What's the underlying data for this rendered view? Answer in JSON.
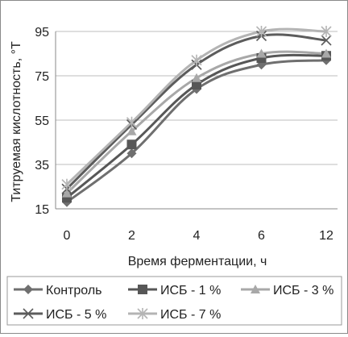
{
  "chart_data": {
    "type": "line",
    "title": "",
    "xlabel": "Время ферментации, ч",
    "ylabel": "Титруемая кислотность, °Т",
    "categories": [
      "0",
      "2",
      "4",
      "6",
      "12"
    ],
    "ylim": [
      15,
      95
    ],
    "yticks": [
      15,
      35,
      55,
      75,
      95
    ],
    "grid": "horizontal",
    "legend": "bottom",
    "series": [
      {
        "name": "Контроль",
        "values": [
          18,
          40,
          69,
          80,
          82
        ],
        "marker": "diamond",
        "color": "#6f6f6f"
      },
      {
        "name": "ИСБ - 1 %",
        "values": [
          20,
          44,
          71,
          83,
          84
        ],
        "marker": "square",
        "color": "#575757"
      },
      {
        "name": "ИСБ - 3 %",
        "values": [
          22,
          50,
          74,
          85,
          85
        ],
        "marker": "triangle",
        "color": "#a8a8a8"
      },
      {
        "name": "ИСБ - 5 %",
        "values": [
          24,
          53,
          80,
          93,
          91
        ],
        "marker": "x",
        "color": "#5c5c5c"
      },
      {
        "name": "ИСБ - 7 %",
        "values": [
          26,
          54,
          82,
          95,
          95
        ],
        "marker": "star",
        "color": "#b4b4b4"
      }
    ]
  }
}
